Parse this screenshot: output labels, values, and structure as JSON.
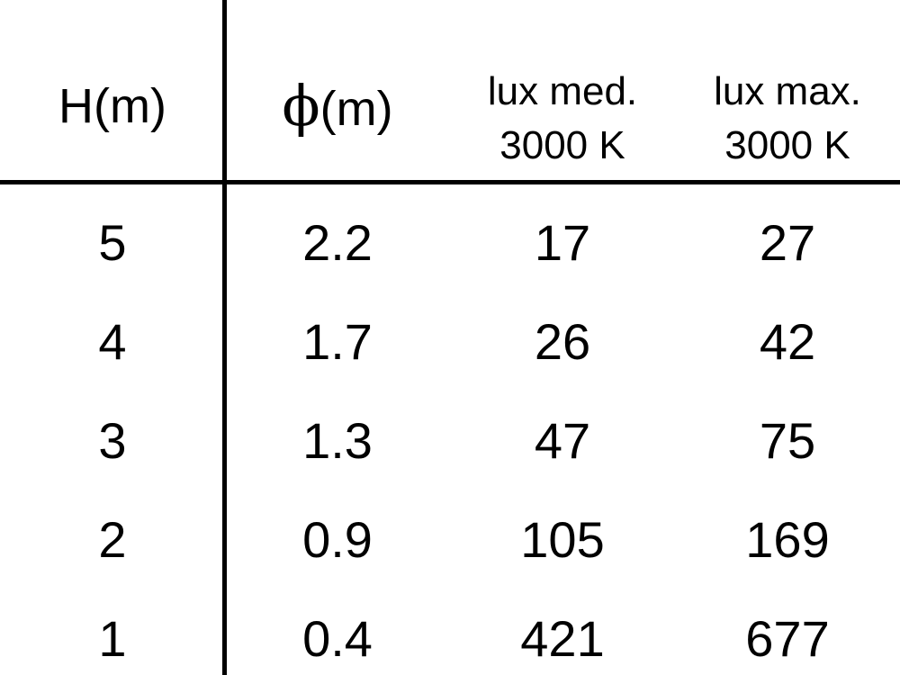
{
  "chart_data": {
    "type": "table",
    "columns": [
      {
        "label": "H(m)"
      },
      {
        "symbol": "ϕ",
        "label": "(m)"
      },
      {
        "line1": "lux med.",
        "line2": "3000 K"
      },
      {
        "line1": "lux max.",
        "line2": "3000 K"
      }
    ],
    "rows": [
      [
        "5",
        "2.2",
        "17",
        "27"
      ],
      [
        "4",
        "1.7",
        "26",
        "42"
      ],
      [
        "3",
        "1.3",
        "47",
        "75"
      ],
      [
        "2",
        "0.9",
        "105",
        "169"
      ],
      [
        "1",
        "0.4",
        "421",
        "677"
      ]
    ]
  }
}
